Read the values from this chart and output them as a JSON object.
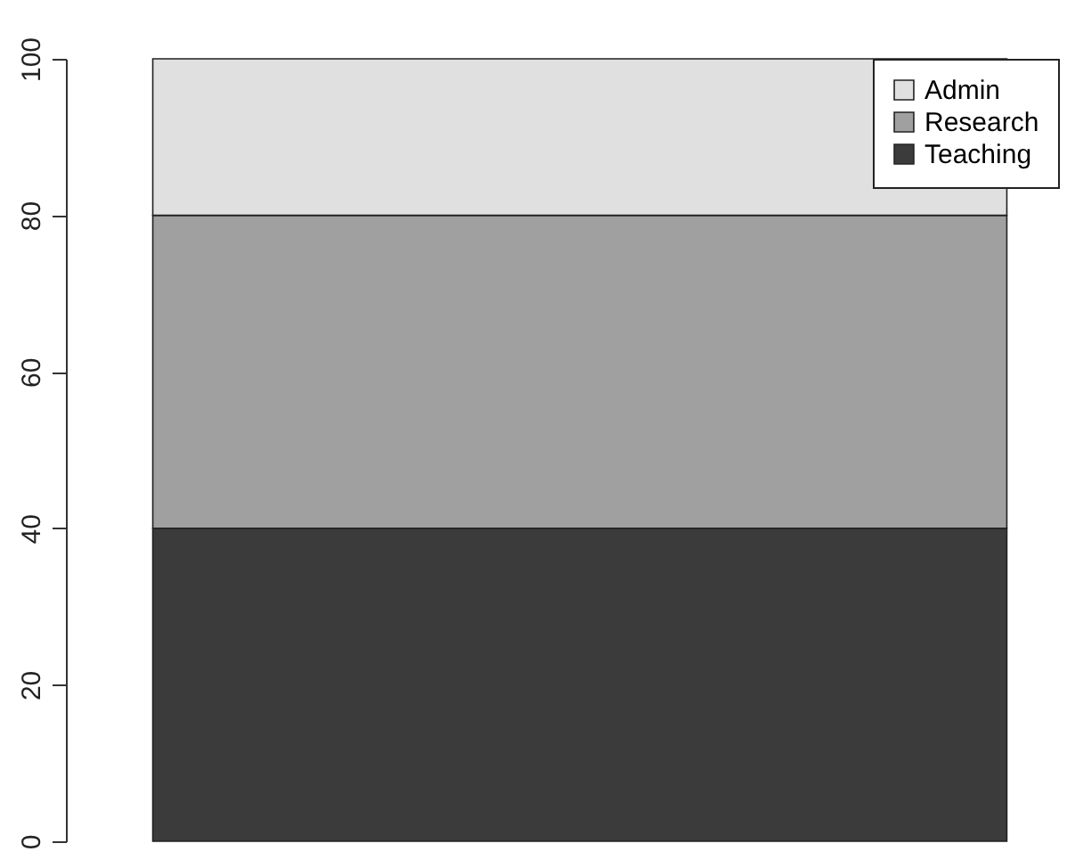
{
  "chart_data": {
    "type": "bar",
    "stacked": true,
    "categories": [
      null
    ],
    "series": [
      {
        "name": "Teaching",
        "color": "#3b3b3b",
        "values": [
          40
        ]
      },
      {
        "name": "Research",
        "color": "#a0a0a0",
        "values": [
          40
        ]
      },
      {
        "name": "Admin",
        "color": "#e0e0e0",
        "values": [
          20
        ]
      }
    ],
    "ylim": [
      0,
      100
    ],
    "yticks": [
      0,
      20,
      40,
      60,
      80,
      100
    ],
    "grid": false,
    "legend": "top right",
    "tick_labels": "y"
  }
}
